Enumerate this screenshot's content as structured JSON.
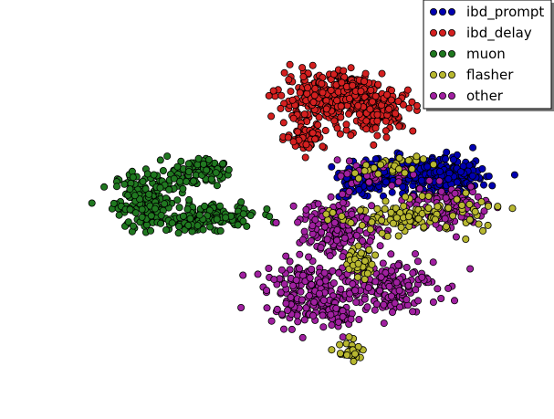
{
  "chart_data": {
    "type": "scatter",
    "title": "",
    "xlabel": "",
    "ylabel": "",
    "axes_visible": false,
    "grid": false,
    "legend_position": "top-right",
    "xlim": [
      0,
      100
    ],
    "ylim": [
      0,
      100
    ],
    "series": [
      {
        "name": "ibd_prompt",
        "color": "#0000b0",
        "clusters": [
          {
            "cx": 72.5,
            "cy": 58.5,
            "sx": 4.2,
            "sy": 1.9,
            "n": 220
          },
          {
            "cx": 81.5,
            "cy": 57.5,
            "sx": 3.2,
            "sy": 2.2,
            "n": 170
          },
          {
            "cx": 64.5,
            "cy": 56.0,
            "sx": 2.0,
            "sy": 1.6,
            "n": 60
          }
        ]
      },
      {
        "name": "ibd_delay",
        "color": "#d42020",
        "clusters": [
          {
            "cx": 59.0,
            "cy": 76.0,
            "sx": 4.5,
            "sy": 3.0,
            "n": 270
          },
          {
            "cx": 68.5,
            "cy": 74.0,
            "sx": 3.2,
            "sy": 2.6,
            "n": 160
          },
          {
            "cx": 55.0,
            "cy": 67.5,
            "sx": 1.8,
            "sy": 1.5,
            "n": 50
          },
          {
            "cx": 62.5,
            "cy": 80.0,
            "sx": 2.6,
            "sy": 1.4,
            "n": 70
          }
        ]
      },
      {
        "name": "muon",
        "color": "#207820",
        "clusters": [
          {
            "cx": 27.0,
            "cy": 52.0,
            "sx": 3.2,
            "sy": 3.6,
            "n": 210
          },
          {
            "cx": 35.5,
            "cy": 59.0,
            "sx": 2.4,
            "sy": 1.7,
            "n": 90
          },
          {
            "cx": 39.0,
            "cy": 48.5,
            "sx": 4.0,
            "sy": 1.4,
            "n": 110
          },
          {
            "cx": 34.5,
            "cy": 46.5,
            "sx": 1.6,
            "sy": 1.2,
            "n": 40
          }
        ]
      },
      {
        "name": "flasher",
        "color": "#b8b830",
        "clusters": [
          {
            "cx": 74.5,
            "cy": 48.5,
            "sx": 6.5,
            "sy": 2.0,
            "n": 120
          },
          {
            "cx": 64.5,
            "cy": 37.5,
            "sx": 1.6,
            "sy": 1.8,
            "n": 40
          },
          {
            "cx": 63.5,
            "cy": 16.0,
            "sx": 1.2,
            "sy": 1.4,
            "n": 28
          },
          {
            "cx": 70.0,
            "cy": 60.0,
            "sx": 3.5,
            "sy": 1.6,
            "n": 30
          }
        ]
      },
      {
        "name": "other",
        "color": "#a020a0",
        "clusters": [
          {
            "cx": 61.5,
            "cy": 46.0,
            "sx": 3.8,
            "sy": 3.2,
            "n": 180
          },
          {
            "cx": 56.0,
            "cy": 30.0,
            "sx": 4.0,
            "sy": 3.6,
            "n": 190
          },
          {
            "cx": 69.0,
            "cy": 32.0,
            "sx": 4.8,
            "sy": 3.2,
            "n": 170
          },
          {
            "cx": 80.0,
            "cy": 50.5,
            "sx": 3.8,
            "sy": 2.8,
            "n": 110
          },
          {
            "cx": 62.5,
            "cy": 24.5,
            "sx": 1.8,
            "sy": 1.8,
            "n": 40
          },
          {
            "cx": 67.5,
            "cy": 58.0,
            "sx": 2.8,
            "sy": 1.2,
            "n": 40
          }
        ]
      }
    ]
  }
}
